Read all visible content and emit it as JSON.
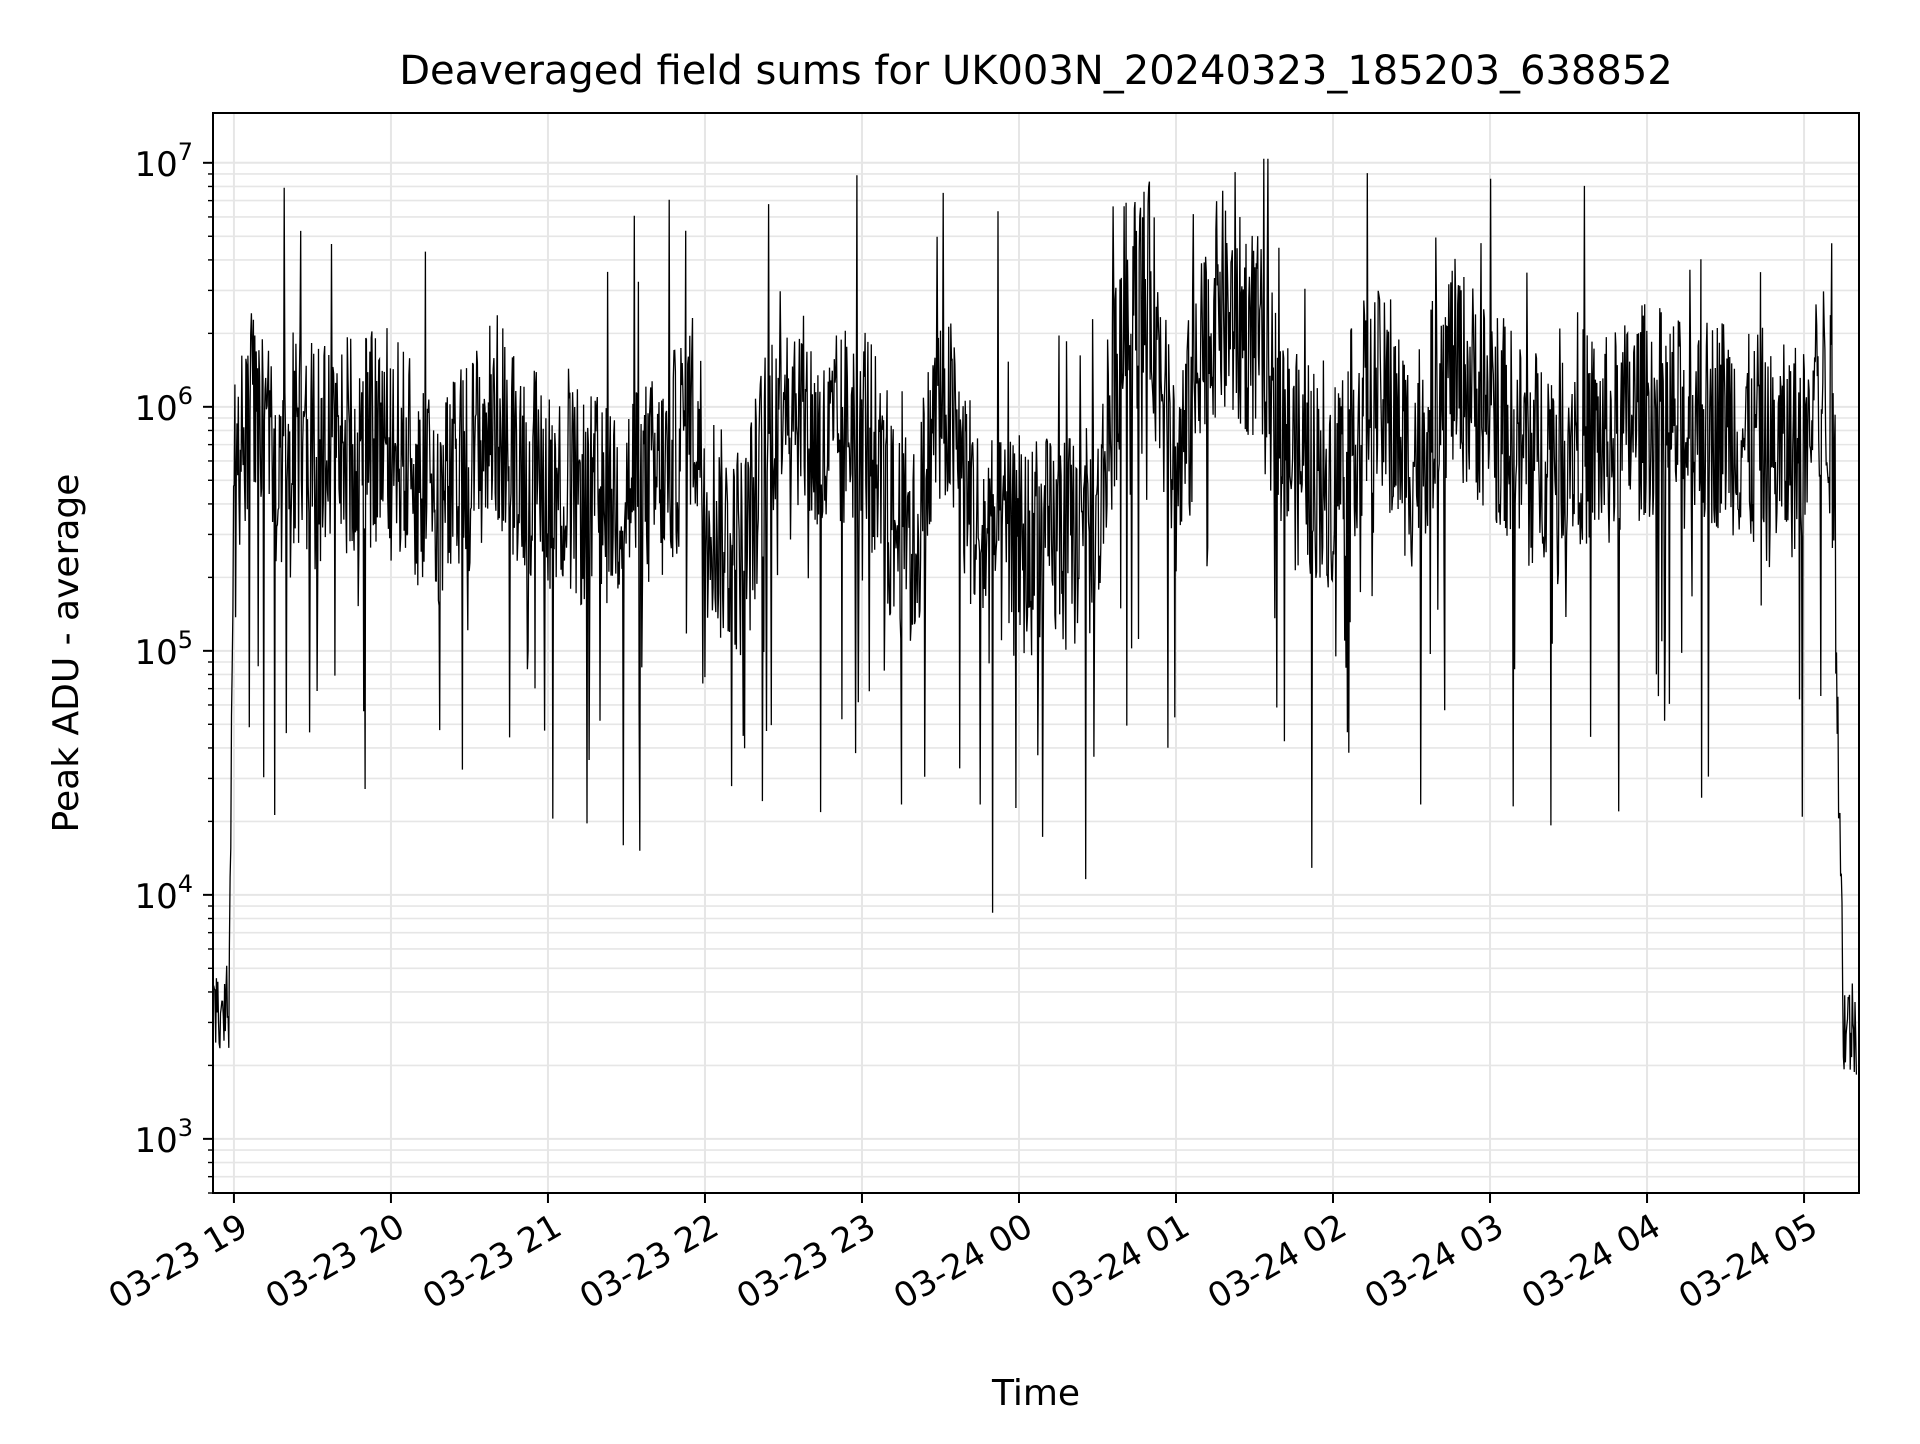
{
  "chart_data": {
    "type": "line",
    "title": "Deaveraged field sums for UK003N_20240323_185203_638852",
    "xlabel": "Time",
    "ylabel": "Peak ADU - average",
    "x_scale": "time",
    "y_scale": "log",
    "xlim": [
      "2024-03-23 18:52",
      "2024-03-24 05:21"
    ],
    "ylim": [
      600,
      16000000
    ],
    "x_ticks": [
      "03-23 19",
      "03-23 20",
      "03-23 21",
      "03-23 22",
      "03-23 23",
      "03-24 00",
      "03-24 01",
      "03-24 02",
      "03-24 03",
      "03-24 04",
      "03-24 05"
    ],
    "y_ticks": [
      {
        "base": "10",
        "exp": "3"
      },
      {
        "base": "10",
        "exp": "4"
      },
      {
        "base": "10",
        "exp": "5"
      },
      {
        "base": "10",
        "exp": "6"
      },
      {
        "base": "10",
        "exp": "7"
      }
    ],
    "grid": true,
    "line_color": "#000000",
    "grid_color": "#e6e6e6",
    "series": [
      {
        "x": [
          "2024-03-23 18:52",
          "2024-03-23 18:55",
          "2024-03-23 18:57",
          "2024-03-23 18:58",
          "2024-03-23 19:00",
          "2024-03-23 19:03",
          "2024-03-23 19:06",
          "2024-03-23 19:10",
          "2024-03-23 19:15",
          "2024-03-23 19:20",
          "2024-03-23 19:25",
          "2024-03-23 19:30",
          "2024-03-23 19:40",
          "2024-03-23 19:50",
          "2024-03-23 20:00",
          "2024-03-23 20:10",
          "2024-03-23 20:20",
          "2024-03-23 20:30",
          "2024-03-23 20:40",
          "2024-03-23 20:50",
          "2024-03-23 21:00",
          "2024-03-23 21:15",
          "2024-03-23 21:30",
          "2024-03-23 21:45",
          "2024-03-23 21:55",
          "2024-03-23 22:05",
          "2024-03-23 22:15",
          "2024-03-23 22:30",
          "2024-03-23 22:45",
          "2024-03-23 23:00",
          "2024-03-23 23:10",
          "2024-03-23 23:20",
          "2024-03-23 23:30",
          "2024-03-23 23:45",
          "2024-03-24 00:00",
          "2024-03-24 00:15",
          "2024-03-24 00:30",
          "2024-03-24 00:40",
          "2024-03-24 00:50",
          "2024-03-24 01:00",
          "2024-03-24 01:15",
          "2024-03-24 01:30",
          "2024-03-24 01:45",
          "2024-03-24 02:00",
          "2024-03-24 02:15",
          "2024-03-24 02:30",
          "2024-03-24 02:45",
          "2024-03-24 03:00",
          "2024-03-24 03:15",
          "2024-03-24 03:30",
          "2024-03-24 03:45",
          "2024-03-24 04:00",
          "2024-03-24 04:15",
          "2024-03-24 04:30",
          "2024-03-24 04:45",
          "2024-03-24 05:00",
          "2024-03-24 05:08",
          "2024-03-24 05:10",
          "2024-03-24 05:12",
          "2024-03-24 05:15",
          "2024-03-24 05:20"
        ],
        "y": [
          3000,
          2800,
          4000,
          3000,
          500000,
          700000,
          900000,
          700000,
          600000,
          800000,
          700000,
          600000,
          750000,
          700000,
          800000,
          500000,
          400000,
          600000,
          900000,
          600000,
          500000,
          400000,
          450000,
          500000,
          1000000,
          300000,
          250000,
          1500000,
          600000,
          1000000,
          350000,
          250000,
          1200000,
          300000,
          250000,
          280000,
          300000,
          2500000,
          3000000,
          500000,
          2500000,
          2000000,
          600000,
          500000,
          1200000,
          600000,
          1500000,
          1000000,
          600000,
          800000,
          700000,
          1000000,
          800000,
          900000,
          600000,
          700000,
          1300000,
          900000,
          400000,
          3000,
          2800
        ]
      }
    ]
  }
}
